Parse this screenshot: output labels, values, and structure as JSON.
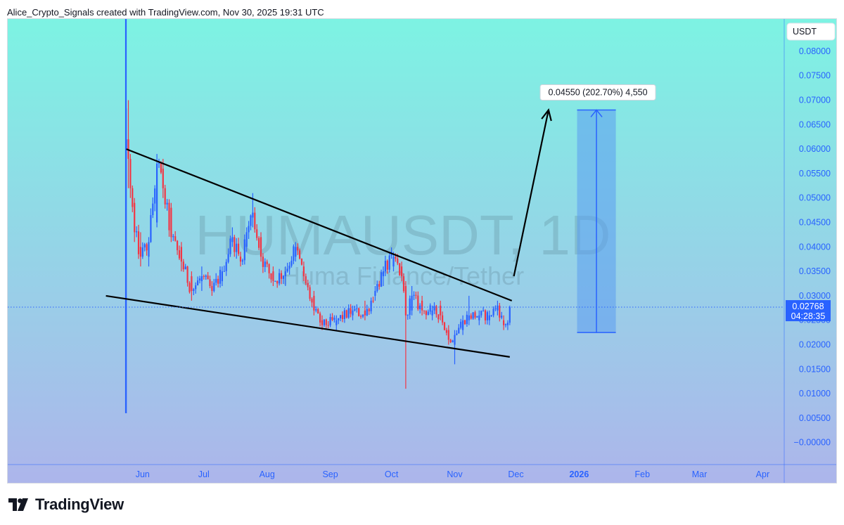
{
  "header": {
    "credit": "Alice_Crypto_Signals created with TradingView.com, Nov 30, 2025 19:31 UTC"
  },
  "footer": {
    "brand": "TradingView",
    "logo_icon": "tradingview-logo-icon"
  },
  "colors": {
    "bg_top": "#7df3e3",
    "bg_bottom": "#adb5eb",
    "up": "#2962ff",
    "down": "#f23645",
    "axis_text": "#2962ff",
    "price_label_bg": "#2962ff",
    "projection_fill": "#5b9cf0",
    "trendline": "#000000"
  },
  "chart_data": {
    "type": "candlestick",
    "watermark": {
      "symbol": "HUMAUSDT, 1D",
      "name": "Huma Finance/Tether"
    },
    "y_axis": {
      "unit": "USDT",
      "ticks": [
        "0.08000",
        "0.07500",
        "0.07000",
        "0.06500",
        "0.06000",
        "0.05500",
        "0.05000",
        "0.04500",
        "0.04000",
        "0.03500",
        "0.03000",
        "0.02500",
        "0.02000",
        "0.01500",
        "0.01000",
        "0.00500",
        "−0.00000"
      ],
      "range": [
        -0.0045,
        0.0866
      ]
    },
    "x_axis": {
      "labels": [
        "Jun",
        "Jul",
        "Aug",
        "Sep",
        "Oct",
        "Nov",
        "Dec",
        "2026",
        "Feb",
        "Mar",
        "Apr"
      ],
      "bold_labels": [
        "2026"
      ]
    },
    "current_price": {
      "value": "0.02768",
      "countdown": "04:28:35"
    },
    "start_date": "2025-05-26",
    "end_date": "2025-11-30",
    "ohlc_anchors": [
      [
        "2025-05-26",
        0.06,
        0.0683,
        0.006,
        0.062
      ],
      [
        "2025-05-27",
        0.062,
        0.07,
        0.052,
        0.058
      ],
      [
        "2025-05-28",
        0.058,
        0.059,
        0.05,
        0.052
      ],
      [
        "2025-05-30",
        0.049,
        0.05,
        0.041,
        0.043
      ],
      [
        "2025-06-02",
        0.04,
        0.043,
        0.036,
        0.038
      ],
      [
        "2025-06-06",
        0.038,
        0.042,
        0.036,
        0.041
      ],
      [
        "2025-06-10",
        0.045,
        0.059,
        0.044,
        0.057
      ],
      [
        "2025-06-13",
        0.056,
        0.058,
        0.05,
        0.052
      ],
      [
        "2025-06-17",
        0.048,
        0.049,
        0.041,
        0.042
      ],
      [
        "2025-06-22",
        0.04,
        0.041,
        0.035,
        0.037
      ],
      [
        "2025-06-27",
        0.034,
        0.035,
        0.029,
        0.031
      ],
      [
        "2025-07-02",
        0.033,
        0.036,
        0.031,
        0.034
      ],
      [
        "2025-07-07",
        0.032,
        0.033,
        0.03,
        0.031
      ],
      [
        "2025-07-12",
        0.033,
        0.036,
        0.032,
        0.035
      ],
      [
        "2025-07-17",
        0.041,
        0.044,
        0.04,
        0.042
      ],
      [
        "2025-07-21",
        0.038,
        0.039,
        0.036,
        0.037
      ],
      [
        "2025-07-24",
        0.04,
        0.044,
        0.039,
        0.043
      ],
      [
        "2025-07-27",
        0.046,
        0.051,
        0.044,
        0.047
      ],
      [
        "2025-07-31",
        0.042,
        0.043,
        0.037,
        0.038
      ],
      [
        "2025-08-06",
        0.035,
        0.036,
        0.032,
        0.033
      ],
      [
        "2025-08-12",
        0.034,
        0.036,
        0.032,
        0.035
      ],
      [
        "2025-08-17",
        0.038,
        0.041,
        0.037,
        0.04
      ],
      [
        "2025-08-21",
        0.036,
        0.037,
        0.033,
        0.034
      ],
      [
        "2025-08-26",
        0.03,
        0.031,
        0.026,
        0.027
      ],
      [
        "2025-08-30",
        0.025,
        0.026,
        0.023,
        0.024
      ],
      [
        "2025-09-06",
        0.024,
        0.026,
        0.023,
        0.025
      ],
      [
        "2025-09-14",
        0.026,
        0.028,
        0.025,
        0.027
      ],
      [
        "2025-09-20",
        0.027,
        0.029,
        0.025,
        0.026
      ],
      [
        "2025-09-25",
        0.03,
        0.032,
        0.029,
        0.031
      ],
      [
        "2025-09-29",
        0.034,
        0.036,
        0.032,
        0.035
      ],
      [
        "2025-10-04",
        0.036,
        0.039,
        0.035,
        0.038
      ],
      [
        "2025-10-08",
        0.036,
        0.037,
        0.033,
        0.034
      ],
      [
        "2025-10-10",
        0.032,
        0.033,
        0.011,
        0.026
      ],
      [
        "2025-10-13",
        0.027,
        0.032,
        0.026,
        0.03
      ],
      [
        "2025-10-18",
        0.029,
        0.03,
        0.026,
        0.027
      ],
      [
        "2025-10-23",
        0.026,
        0.028,
        0.025,
        0.027
      ],
      [
        "2025-10-27",
        0.028,
        0.029,
        0.025,
        0.026
      ],
      [
        "2025-10-31",
        0.023,
        0.024,
        0.02,
        0.021
      ],
      [
        "2025-11-03",
        0.02,
        0.023,
        0.016,
        0.022
      ],
      [
        "2025-11-07",
        0.023,
        0.026,
        0.022,
        0.025
      ],
      [
        "2025-11-10",
        0.025,
        0.03,
        0.024,
        0.026
      ],
      [
        "2025-11-15",
        0.025,
        0.027,
        0.024,
        0.026
      ],
      [
        "2025-11-20",
        0.025,
        0.027,
        0.024,
        0.026
      ],
      [
        "2025-11-24",
        0.027,
        0.029,
        0.026,
        0.028
      ],
      [
        "2025-11-27",
        0.025,
        0.026,
        0.023,
        0.024
      ],
      [
        "2025-11-29",
        0.024,
        0.025,
        0.023,
        0.0245
      ],
      [
        "2025-11-30",
        0.0245,
        0.028,
        0.024,
        0.02768
      ]
    ],
    "drawings": {
      "upper_trendline": {
        "from": [
          "2025-05-26",
          0.06
        ],
        "to": [
          "2025-12-01",
          0.029
        ]
      },
      "lower_trendline": {
        "from": [
          "2025-05-16",
          0.03
        ],
        "to": [
          "2025-11-30",
          0.0175
        ]
      },
      "breakout_arrow": {
        "from": [
          "2025-12-02",
          0.034
        ],
        "to": [
          "2025-12-19",
          0.068
        ]
      },
      "price_range": {
        "from_date": "2026-01-02",
        "to_date": "2026-01-21",
        "low": 0.0225,
        "high": 0.068,
        "label": "0.04550 (202.70%) 4,550"
      }
    }
  }
}
